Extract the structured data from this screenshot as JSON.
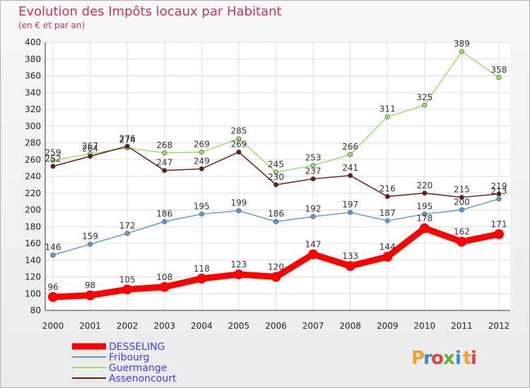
{
  "chart_data": {
    "type": "line",
    "title": "Evolution des Impôts locaux par Habitant",
    "subtitle": "(en € et par an)",
    "x": [
      "2000",
      "2001",
      "2002",
      "2003",
      "2004",
      "2005",
      "2006",
      "2007",
      "2008",
      "2009",
      "2010",
      "2011",
      "2012"
    ],
    "ylim": [
      80,
      400
    ],
    "yticks": [
      80,
      100,
      120,
      140,
      160,
      180,
      200,
      220,
      240,
      260,
      280,
      300,
      320,
      340,
      360,
      380,
      400
    ],
    "grid": true,
    "legend_position": "bottom-left",
    "series": [
      {
        "name": "DESSELING",
        "color": "#ff0000",
        "values": [
          96,
          98,
          105,
          108,
          118,
          123,
          120,
          147,
          133,
          144,
          178,
          162,
          171
        ]
      },
      {
        "name": "Fribourg",
        "color": "#5b9bd5",
        "values": [
          146,
          159,
          172,
          186,
          195,
          199,
          186,
          192,
          197,
          187,
          195,
          200,
          213
        ]
      },
      {
        "name": "Guermange",
        "color": "#99dd66",
        "values": [
          259,
          267,
          274,
          268,
          269,
          285,
          245,
          253,
          266,
          311,
          325,
          389,
          358
        ]
      },
      {
        "name": "Assenoncourt",
        "color": "#6b1a1a",
        "values": [
          252,
          264,
          276,
          247,
          249,
          269,
          230,
          237,
          241,
          216,
          220,
          215,
          219
        ]
      }
    ]
  },
  "logo": {
    "text": "Prox",
    "letter_i": "i",
    "letter_x": "x",
    "text2": "ti",
    "parts": [
      "P",
      "r",
      "o",
      "x",
      "i",
      "t",
      "i"
    ]
  }
}
